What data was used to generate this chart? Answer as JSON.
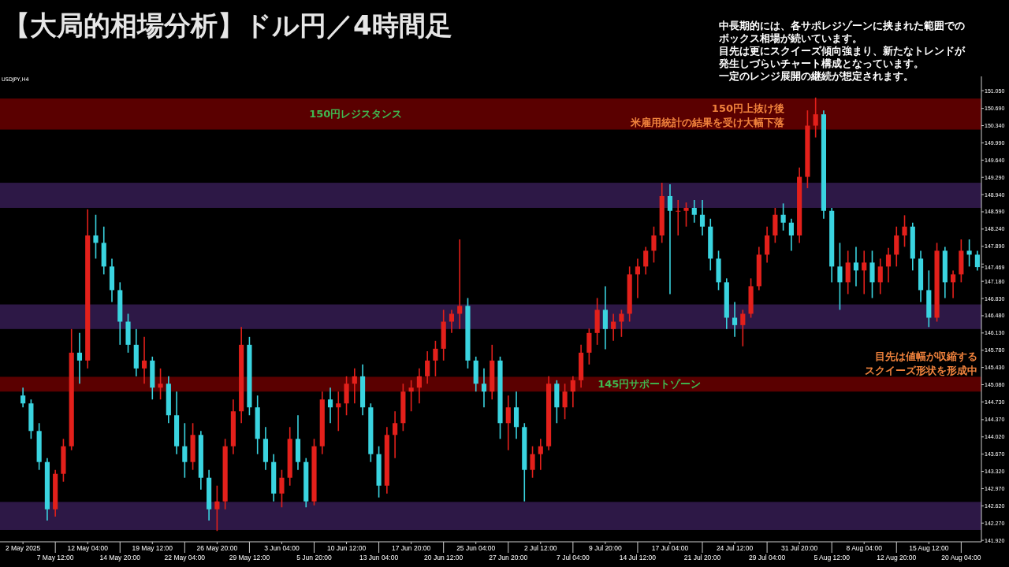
{
  "chart_data": {
    "type": "candlestick",
    "title": "【大局的相場分析】ドル円／4時間足",
    "categories": [
      "2 May 2025",
      null,
      null,
      null,
      "7 May 12:00",
      null,
      null,
      null,
      "12 May 04:00",
      null,
      null,
      null,
      "14 May 20:00",
      null,
      null,
      null,
      "19 May 12:00",
      null,
      null,
      null,
      "22 May 04:00",
      null,
      null,
      null,
      "26 May 20:00",
      null,
      null,
      null,
      "29 May 12:00",
      null,
      null,
      null,
      "3 Jun 04:00",
      null,
      null,
      null,
      "5 Jun 20:00",
      null,
      null,
      null,
      "10 Jun 12:00",
      null,
      null,
      null,
      "13 Jun 04:00",
      null,
      null,
      null,
      "17 Jun 20:00",
      null,
      null,
      null,
      "20 Jun 12:00",
      null,
      null,
      null,
      "25 Jun 04:00",
      null,
      null,
      null,
      "27 Jun 20:00",
      null,
      null,
      null,
      "2 Jul 12:00",
      null,
      null,
      null,
      "7 Jul 04:00",
      null,
      null,
      null,
      "9 Jul 20:00",
      null,
      null,
      null,
      "14 Jul 12:00",
      null,
      null,
      null,
      "17 Jul 04:00",
      null,
      null,
      null,
      "21 Jul 20:00",
      null,
      null,
      null,
      "24 Jul 12:00",
      null,
      null,
      null,
      "29 Jul 04:00",
      null,
      null,
      null,
      "31 Jul 20:00",
      null,
      null,
      null,
      "5 Aug 12:00",
      null,
      null,
      null,
      "8 Aug 04:00",
      null,
      null,
      null,
      "12 Aug 20:00",
      null,
      null,
      null,
      "15 Aug 12:00",
      null,
      null,
      null,
      "20 Aug 04:00",
      null,
      null
    ],
    "ohlc": [
      [
        144.86,
        145.02,
        144.62,
        144.7
      ],
      [
        144.7,
        144.78,
        143.98,
        144.14
      ],
      [
        144.14,
        144.3,
        143.35,
        143.51
      ],
      [
        143.51,
        143.59,
        142.32,
        142.55
      ],
      [
        142.55,
        143.35,
        142.4,
        143.27
      ],
      [
        143.27,
        143.98,
        143.11,
        143.83
      ],
      [
        143.83,
        146.21,
        143.75,
        145.73
      ],
      [
        145.73,
        146.13,
        145.1,
        145.57
      ],
      [
        145.57,
        148.64,
        145.41,
        148.11
      ],
      [
        148.11,
        148.53,
        147.64,
        147.96
      ],
      [
        147.96,
        148.29,
        147.32,
        147.48
      ],
      [
        147.48,
        147.64,
        146.76,
        147.0
      ],
      [
        147.0,
        147.16,
        145.89,
        146.36
      ],
      [
        146.36,
        146.52,
        145.73,
        145.89
      ],
      [
        145.89,
        146.21,
        145.25,
        145.41
      ],
      [
        145.41,
        146.05,
        145.1,
        145.57
      ],
      [
        145.57,
        145.65,
        144.78,
        145.02
      ],
      [
        145.02,
        145.41,
        144.78,
        145.1
      ],
      [
        145.1,
        145.25,
        144.3,
        144.46
      ],
      [
        144.46,
        144.94,
        143.67,
        143.83
      ],
      [
        143.83,
        144.3,
        143.19,
        143.51
      ],
      [
        143.51,
        144.3,
        143.35,
        144.06
      ],
      [
        144.06,
        144.14,
        142.95,
        143.19
      ],
      [
        143.19,
        143.35,
        142.32,
        142.55
      ],
      [
        142.55,
        143.03,
        142.11,
        142.71
      ],
      [
        142.71,
        143.98,
        142.55,
        143.83
      ],
      [
        143.83,
        144.78,
        143.67,
        144.54
      ],
      [
        144.54,
        146.25,
        144.3,
        145.89
      ],
      [
        145.89,
        146.05,
        144.46,
        144.62
      ],
      [
        144.62,
        144.86,
        143.67,
        143.98
      ],
      [
        143.98,
        144.22,
        143.35,
        143.51
      ],
      [
        143.51,
        143.67,
        142.71,
        142.87
      ],
      [
        142.87,
        143.35,
        142.59,
        143.19
      ],
      [
        143.19,
        144.22,
        143.03,
        143.98
      ],
      [
        143.98,
        144.46,
        143.35,
        143.51
      ],
      [
        143.51,
        143.59,
        142.59,
        142.71
      ],
      [
        142.71,
        143.98,
        142.63,
        143.83
      ],
      [
        143.83,
        144.94,
        143.67,
        144.78
      ],
      [
        144.78,
        145.02,
        144.3,
        144.62
      ],
      [
        144.62,
        144.94,
        144.14,
        144.7
      ],
      [
        144.7,
        145.25,
        144.46,
        145.1
      ],
      [
        145.1,
        145.41,
        144.7,
        145.25
      ],
      [
        145.25,
        145.49,
        144.46,
        144.62
      ],
      [
        144.62,
        144.7,
        143.51,
        143.67
      ],
      [
        143.67,
        143.83,
        142.79,
        143.03
      ],
      [
        143.03,
        144.22,
        142.87,
        144.06
      ],
      [
        144.06,
        144.54,
        143.59,
        144.3
      ],
      [
        144.3,
        145.1,
        144.14,
        144.94
      ],
      [
        144.94,
        145.17,
        144.54,
        145.02
      ],
      [
        145.02,
        145.41,
        144.7,
        145.25
      ],
      [
        145.25,
        145.76,
        145.1,
        145.57
      ],
      [
        145.57,
        145.97,
        145.25,
        145.81
      ],
      [
        145.81,
        146.6,
        145.57,
        146.36
      ],
      [
        146.36,
        146.6,
        146.13,
        146.52
      ],
      [
        146.52,
        148.03,
        146.21,
        146.68
      ],
      [
        146.68,
        146.84,
        145.41,
        145.57
      ],
      [
        145.57,
        145.65,
        144.94,
        145.1
      ],
      [
        145.1,
        145.41,
        144.62,
        144.94
      ],
      [
        144.94,
        145.89,
        144.78,
        145.57
      ],
      [
        145.57,
        145.65,
        143.98,
        144.3
      ],
      [
        144.3,
        144.86,
        143.75,
        144.62
      ],
      [
        144.62,
        144.94,
        143.98,
        144.22
      ],
      [
        144.22,
        144.3,
        142.71,
        143.35
      ],
      [
        143.35,
        143.83,
        143.19,
        143.67
      ],
      [
        143.67,
        143.98,
        143.35,
        143.83
      ],
      [
        143.83,
        145.25,
        143.75,
        145.1
      ],
      [
        145.1,
        145.17,
        144.3,
        144.62
      ],
      [
        144.62,
        145.1,
        144.38,
        144.94
      ],
      [
        144.94,
        145.25,
        144.62,
        145.17
      ],
      [
        145.17,
        145.89,
        145.02,
        145.73
      ],
      [
        145.73,
        146.22,
        145.49,
        146.13
      ],
      [
        146.13,
        146.84,
        145.89,
        146.6
      ],
      [
        146.6,
        147.08,
        145.8,
        146.21
      ],
      [
        146.21,
        146.52,
        145.97,
        146.36
      ],
      [
        146.36,
        146.6,
        146.05,
        146.52
      ],
      [
        146.52,
        147.48,
        146.36,
        147.32
      ],
      [
        147.32,
        147.64,
        146.84,
        147.48
      ],
      [
        147.48,
        147.88,
        147.32,
        147.8
      ],
      [
        147.8,
        148.29,
        147.56,
        148.11
      ],
      [
        148.11,
        149.18,
        147.96,
        148.91
      ],
      [
        148.91,
        149.15,
        146.92,
        148.61
      ],
      [
        148.61,
        148.83,
        148.11,
        148.61
      ],
      [
        148.61,
        148.78,
        148.29,
        148.67
      ],
      [
        148.67,
        148.83,
        148.37,
        148.53
      ],
      [
        148.53,
        148.83,
        148.11,
        148.29
      ],
      [
        148.29,
        148.45,
        147.4,
        147.64
      ],
      [
        147.64,
        147.8,
        147.0,
        147.16
      ],
      [
        147.16,
        147.24,
        146.21,
        146.44
      ],
      [
        146.44,
        146.76,
        146.05,
        146.29
      ],
      [
        146.29,
        146.6,
        145.86,
        146.52
      ],
      [
        146.52,
        147.24,
        146.44,
        147.08
      ],
      [
        147.08,
        147.88,
        147.0,
        147.72
      ],
      [
        147.72,
        148.29,
        147.56,
        148.11
      ],
      [
        148.11,
        148.67,
        147.96,
        148.53
      ],
      [
        148.53,
        148.76,
        148.21,
        148.37
      ],
      [
        148.37,
        148.45,
        147.8,
        148.11
      ],
      [
        148.11,
        149.49,
        147.96,
        149.3
      ],
      [
        149.3,
        150.65,
        149.07,
        150.34
      ],
      [
        150.34,
        150.91,
        150.1,
        150.57
      ],
      [
        150.57,
        150.65,
        148.45,
        148.61
      ],
      [
        148.61,
        148.67,
        147.16,
        147.48
      ],
      [
        147.48,
        147.96,
        146.6,
        147.16
      ],
      [
        147.16,
        147.8,
        146.92,
        147.56
      ],
      [
        147.56,
        147.88,
        147.08,
        147.4
      ],
      [
        147.4,
        147.8,
        146.92,
        147.56
      ],
      [
        147.56,
        147.8,
        146.84,
        147.16
      ],
      [
        147.16,
        147.64,
        146.92,
        147.48
      ],
      [
        147.48,
        147.86,
        147.16,
        147.72
      ],
      [
        147.72,
        148.29,
        147.48,
        148.11
      ],
      [
        148.11,
        148.52,
        147.88,
        148.29
      ],
      [
        148.29,
        148.37,
        147.4,
        147.64
      ],
      [
        147.64,
        147.8,
        146.76,
        147.0
      ],
      [
        147.0,
        147.4,
        146.25,
        146.44
      ],
      [
        146.44,
        147.96,
        146.36,
        147.8
      ],
      [
        147.8,
        147.88,
        146.84,
        147.16
      ],
      [
        147.16,
        147.4,
        146.84,
        147.32
      ],
      [
        147.32,
        148.03,
        147.16,
        147.8
      ],
      [
        147.8,
        148.03,
        147.48,
        147.72
      ],
      [
        147.72,
        147.8,
        147.4,
        147.469
      ]
    ],
    "ylim": [
      141.89,
      151.34
    ],
    "yticks": [
      {
        "value": 151.05,
        "label": "151.050"
      },
      {
        "value": 150.69,
        "label": "150.690"
      },
      {
        "value": 150.34,
        "label": "150.340"
      },
      {
        "value": 149.99,
        "label": "149.990"
      },
      {
        "value": 149.64,
        "label": "149.640"
      },
      {
        "value": 149.29,
        "label": "149.290"
      },
      {
        "value": 148.94,
        "label": "148.940"
      },
      {
        "value": 148.59,
        "label": "148.590"
      },
      {
        "value": 148.24,
        "label": "148.240"
      },
      {
        "value": 147.89,
        "label": "147.890"
      },
      {
        "value": 147.53,
        "label": null
      },
      {
        "value": 147.469,
        "label": "147.469"
      },
      {
        "value": 147.18,
        "label": "147.180"
      },
      {
        "value": 146.83,
        "label": "146.830"
      },
      {
        "value": 146.48,
        "label": "146.480"
      },
      {
        "value": 146.13,
        "label": "146.130"
      },
      {
        "value": 145.78,
        "label": "145.780"
      },
      {
        "value": 145.43,
        "label": "145.430"
      },
      {
        "value": 145.08,
        "label": "145.080"
      },
      {
        "value": 144.73,
        "label": "144.730"
      },
      {
        "value": 144.37,
        "label": "144.370"
      },
      {
        "value": 144.02,
        "label": "144.020"
      },
      {
        "value": 143.67,
        "label": "143.670"
      },
      {
        "value": 143.32,
        "label": "143.320"
      },
      {
        "value": 142.97,
        "label": "142.970"
      },
      {
        "value": 142.62,
        "label": "142.620"
      },
      {
        "value": 142.27,
        "label": "142.270"
      },
      {
        "value": 141.92,
        "label": "141.920"
      }
    ],
    "bands": [
      {
        "axis": "y",
        "from": 150.26,
        "to": 150.89,
        "label": "150円レジスタンス",
        "color": "#5a0000"
      },
      {
        "axis": "y",
        "from": 148.67,
        "to": 149.18,
        "color": "#2d1846"
      },
      {
        "axis": "y",
        "from": 146.21,
        "to": 146.71,
        "color": "#2d1846"
      },
      {
        "axis": "y",
        "from": 144.94,
        "to": 145.24,
        "label": "145円サポートゾーン",
        "color": "#5a0000"
      },
      {
        "axis": "y",
        "from": 142.13,
        "to": 142.7,
        "color": "#2d1846"
      }
    ],
    "annotations": [
      "中長期的には、各サポレジゾーンに挟まれた範囲でのボックス相場が続いています。",
      "目先は更にスクイーズ傾向強まり、新たなトレンドが発生しづらいチャート構成となっています。",
      "一定のレンジ展開の継続が想定されます。",
      "150円上抜け後米雇用統計の結果を受け大幅下落",
      "目先は値幅が収縮するスクイーズ形状を形成中",
      "USDJPY,H4"
    ]
  }
}
